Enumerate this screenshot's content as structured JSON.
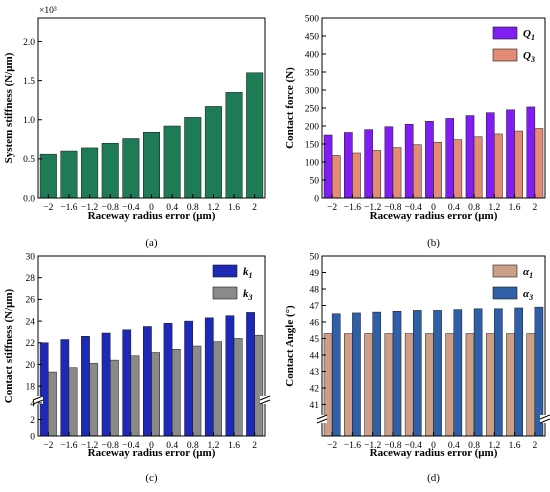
{
  "figure": {
    "colors": {
      "green": "#1e7b55",
      "purple": "#7f1df2",
      "salmon": "#e38b74",
      "navy": "#1f29b8",
      "gray": "#8a8a8a",
      "tan": "#cc9f86",
      "blue": "#2f5fa6"
    }
  },
  "chart_data": [
    {
      "id": "a",
      "type": "bar",
      "panel_label": "(a)",
      "xlabel": "Raceway radius error (μm)",
      "ylabel": "System stiffness (N/μm)",
      "multiplier_label": "×10³",
      "categories": [
        "−2",
        "−1.6",
        "−1.2",
        "−0.8",
        "−0.4",
        "0",
        "0.4",
        "0.8",
        "1.2",
        "1.6",
        "2"
      ],
      "ylim": [
        0,
        2.3
      ],
      "yticks": [
        "0.0",
        "0.5",
        "1.0",
        "1.5",
        "2.0"
      ],
      "ytick_values": [
        0,
        0.5,
        1.0,
        1.5,
        2.0
      ],
      "series": [
        {
          "name": "",
          "color": "#1e7b55",
          "values": [
            0.56,
            0.6,
            0.64,
            0.7,
            0.76,
            0.84,
            0.92,
            1.03,
            1.17,
            1.35,
            1.6
          ]
        }
      ],
      "legend": null
    },
    {
      "id": "b",
      "type": "bar",
      "panel_label": "(b)",
      "xlabel": "Raceway radius error (μm)",
      "ylabel": "Contact force (N)",
      "categories": [
        "−2",
        "−1.6",
        "−1.2",
        "−0.8",
        "−0.4",
        "0",
        "0.4",
        "0.8",
        "1.2",
        "1.6",
        "2"
      ],
      "ylim": [
        0,
        500
      ],
      "yticks": [
        "0",
        "50",
        "100",
        "150",
        "200",
        "250",
        "300",
        "350",
        "400",
        "450",
        "500"
      ],
      "ytick_values": [
        0,
        50,
        100,
        150,
        200,
        250,
        300,
        350,
        400,
        450,
        500
      ],
      "series": [
        {
          "name": "Q",
          "sub": "1",
          "color": "#7f1df2",
          "values": [
            175,
            182,
            190,
            198,
            205,
            213,
            221,
            229,
            237,
            245,
            253
          ]
        },
        {
          "name": "Q",
          "sub": "3",
          "color": "#e38b74",
          "values": [
            118,
            125,
            132,
            140,
            148,
            155,
            162,
            170,
            178,
            186,
            193
          ]
        }
      ],
      "legend": "top-right"
    },
    {
      "id": "c",
      "type": "bar",
      "panel_label": "(c)",
      "xlabel": "Raceway radius error (μm)",
      "ylabel": "Contact stiffness (N/μm)",
      "categories": [
        "−2",
        "−1.6",
        "−1.2",
        "−0.8",
        "−0.4",
        "0",
        "0.4",
        "0.8",
        "1.2",
        "1.6",
        "2"
      ],
      "broken_axis": {
        "lower": [
          0,
          4
        ],
        "upper": [
          17,
          30
        ]
      },
      "yticks": [
        "0",
        "2",
        "4",
        "18",
        "20",
        "22",
        "24",
        "26",
        "28",
        "30"
      ],
      "ytick_values": [
        0,
        2,
        4,
        18,
        20,
        22,
        24,
        26,
        28,
        30
      ],
      "series": [
        {
          "name": "k",
          "sub": "1",
          "color": "#1f29b8",
          "values": [
            22.0,
            22.3,
            22.6,
            22.9,
            23.2,
            23.5,
            23.8,
            24.0,
            24.3,
            24.5,
            24.8
          ]
        },
        {
          "name": "k",
          "sub": "3",
          "color": "#8a8a8a",
          "values": [
            19.3,
            19.7,
            20.1,
            20.4,
            20.8,
            21.1,
            21.4,
            21.7,
            22.1,
            22.4,
            22.7
          ]
        }
      ],
      "legend": "top-right"
    },
    {
      "id": "d",
      "type": "bar",
      "panel_label": "(d)",
      "xlabel": "Raceway radius error (μm)",
      "ylabel": "Contact Angle (°)",
      "categories": [
        "−2",
        "−1.6",
        "−1.2",
        "−0.8",
        "−0.4",
        "0",
        "0.4",
        "0.8",
        "1.2",
        "1.6",
        "2"
      ],
      "broken_axis": {
        "lower": [
          0,
          1
        ],
        "upper": [
          40.3,
          50
        ]
      },
      "yticks": [
        "41",
        "42",
        "43",
        "44",
        "45",
        "46",
        "47",
        "48",
        "49",
        "50"
      ],
      "ytick_values": [
        41,
        42,
        43,
        44,
        45,
        46,
        47,
        48,
        49,
        50
      ],
      "series": [
        {
          "name": "α",
          "sub": "1",
          "color": "#cc9f86",
          "values": [
            45.3,
            45.3,
            45.3,
            45.3,
            45.3,
            45.3,
            45.3,
            45.3,
            45.3,
            45.3,
            45.3
          ]
        },
        {
          "name": "α",
          "sub": "3",
          "color": "#2f5fa6",
          "values": [
            46.5,
            46.55,
            46.6,
            46.65,
            46.7,
            46.7,
            46.75,
            46.8,
            46.8,
            46.85,
            46.9
          ]
        }
      ],
      "legend": "top-right"
    }
  ]
}
